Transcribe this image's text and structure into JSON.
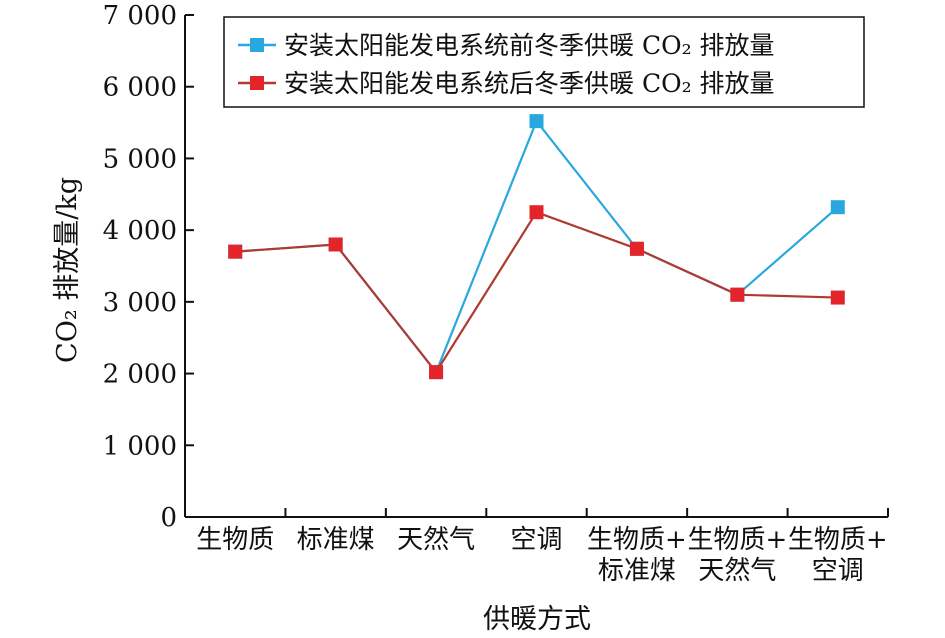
{
  "chart_data": {
    "type": "line",
    "title": "",
    "xlabel": "供暖方式",
    "ylabel": "CO₂ 排放量/kg",
    "ylim": [
      0,
      7000
    ],
    "yticks": [
      0,
      1000,
      2000,
      3000,
      4000,
      5000,
      6000,
      7000
    ],
    "ytick_labels": [
      "0",
      "1 000",
      "2 000",
      "3 000",
      "4 000",
      "5 000",
      "6 000",
      "7 000"
    ],
    "categories": [
      [
        "生物质"
      ],
      [
        "标准煤"
      ],
      [
        "天然气"
      ],
      [
        "空调"
      ],
      [
        "生物质+",
        "标准煤"
      ],
      [
        "生物质+",
        "天然气"
      ],
      [
        "生物质+",
        "空调"
      ]
    ],
    "series": [
      {
        "name": "安装太阳能发电系统前冬季供暖 CO₂ 排放量",
        "color": "#29a8e0",
        "line_style": "solid",
        "values": [
          3700,
          3800,
          2020,
          5520,
          3740,
          3100,
          4320
        ]
      },
      {
        "name": "安装太阳能发电系统后冬季供暖 CO₂ 排放量",
        "color": "#e3242b",
        "line_color": "#b03a30",
        "line_style": "solid",
        "values": [
          3700,
          3800,
          2020,
          4250,
          3740,
          3100,
          3060
        ]
      }
    ],
    "grid": false,
    "legend_position": "top-right"
  }
}
